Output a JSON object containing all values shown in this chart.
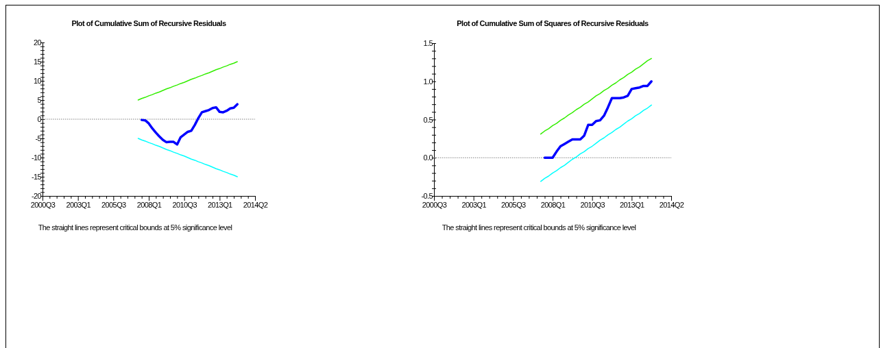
{
  "chart_data": [
    {
      "type": "line",
      "title": "Plot of Cumulative Sum of Recursive Residuals",
      "annotations": [
        "The straight lines represent critical bounds at 5% significance level"
      ],
      "categories": [
        "2000Q3",
        null,
        null,
        null,
        null,
        null,
        null,
        null,
        null,
        null,
        "2003Q1",
        null,
        null,
        null,
        null,
        null,
        null,
        null,
        null,
        null,
        "2005Q3",
        null,
        null,
        null,
        null,
        null,
        null,
        null,
        null,
        null,
        "2008Q1",
        null,
        null,
        null,
        null,
        null,
        null,
        null,
        null,
        null,
        "2010Q3",
        null,
        null,
        null,
        null,
        null,
        null,
        null,
        null,
        null,
        "2013Q1",
        null,
        null,
        null,
        null,
        null,
        null,
        null,
        null,
        null,
        "2014Q2"
      ],
      "ylim": [
        -20,
        20
      ],
      "yticks": [
        -20,
        {
          "value": -19,
          "label": null
        },
        {
          "value": -18,
          "label": null
        },
        {
          "value": -17,
          "label": null
        },
        {
          "value": -16,
          "label": null
        },
        -15,
        {
          "value": -14,
          "label": null
        },
        {
          "value": -13,
          "label": null
        },
        {
          "value": -12,
          "label": null
        },
        {
          "value": -11,
          "label": null
        },
        -10,
        {
          "value": -9,
          "label": null
        },
        {
          "value": -8,
          "label": null
        },
        {
          "value": -7,
          "label": null
        },
        {
          "value": -6,
          "label": null
        },
        -5,
        {
          "value": -4,
          "label": null
        },
        {
          "value": -3,
          "label": null
        },
        {
          "value": -2,
          "label": null
        },
        {
          "value": -1,
          "label": null
        },
        0,
        {
          "value": 1,
          "label": null
        },
        {
          "value": 2,
          "label": null
        },
        {
          "value": 3,
          "label": null
        },
        {
          "value": 4,
          "label": null
        },
        5,
        {
          "value": 6,
          "label": null
        },
        {
          "value": 7,
          "label": null
        },
        {
          "value": 8,
          "label": null
        },
        {
          "value": 9,
          "label": null
        },
        10,
        {
          "value": 11,
          "label": null
        },
        {
          "value": 12,
          "label": null
        },
        {
          "value": 13,
          "label": null
        },
        {
          "value": 14,
          "label": null
        },
        15,
        {
          "value": 16,
          "label": null
        },
        {
          "value": 17,
          "label": null
        },
        {
          "value": 18,
          "label": null
        },
        {
          "value": 19,
          "label": null
        },
        20
      ],
      "ref_lines": [
        {
          "axis": "y",
          "value": 0,
          "color": "#808080",
          "line_style": "dotted"
        }
      ],
      "series": [
        {
          "color": "#0000ff",
          "values": [
            null,
            null,
            null,
            null,
            null,
            null,
            null,
            null,
            null,
            null,
            null,
            null,
            null,
            null,
            null,
            null,
            null,
            null,
            null,
            null,
            null,
            null,
            null,
            null,
            null,
            null,
            null,
            null,
            -0.2,
            -0.3,
            -1.1,
            -2.4,
            -3.5,
            -4.5,
            -5.4,
            -6.0,
            -5.9,
            -5.9,
            -6.6,
            -4.7,
            -4.0,
            -3.3,
            -3.0,
            -1.5,
            0.3,
            1.8,
            2.1,
            2.4,
            2.9,
            3.1,
            1.9,
            1.8,
            2.2,
            2.8,
            3.0,
            3.9,
            null,
            null,
            null,
            null,
            null
          ]
        },
        {
          "color": "#33ee00",
          "values": [
            null,
            null,
            null,
            null,
            null,
            null,
            null,
            null,
            null,
            null,
            null,
            null,
            null,
            null,
            null,
            null,
            null,
            null,
            null,
            null,
            null,
            null,
            null,
            null,
            null,
            null,
            null,
            5,
            5.4,
            5.7,
            6.1,
            6.4,
            6.8,
            7.1,
            7.5,
            7.9,
            8.2,
            8.6,
            8.9,
            9.3,
            9.6,
            10,
            10.4,
            10.7,
            11.1,
            11.4,
            11.8,
            12.1,
            12.5,
            12.9,
            13.2,
            13.6,
            13.9,
            14.3,
            14.6,
            15,
            null,
            null,
            null,
            null,
            null
          ]
        },
        {
          "color": "#00ffff",
          "values": [
            null,
            null,
            null,
            null,
            null,
            null,
            null,
            null,
            null,
            null,
            null,
            null,
            null,
            null,
            null,
            null,
            null,
            null,
            null,
            null,
            null,
            null,
            null,
            null,
            null,
            null,
            null,
            -5,
            -5.4,
            -5.7,
            -6.1,
            -6.4,
            -6.8,
            -7.1,
            -7.5,
            -7.9,
            -8.2,
            -8.6,
            -8.9,
            -9.3,
            -9.6,
            -10,
            -10.4,
            -10.7,
            -11.1,
            -11.4,
            -11.8,
            -12.1,
            -12.5,
            -12.9,
            -13.2,
            -13.6,
            -13.9,
            -14.3,
            -14.6,
            -15,
            null,
            null,
            null,
            null,
            null
          ]
        }
      ]
    },
    {
      "type": "line",
      "title": "Plot of Cumulative Sum of Squares of Recursive Residuals",
      "annotations": [
        "The straight lines represent critical bounds at 5% significance level"
      ],
      "categories": [
        "2000Q3",
        null,
        null,
        null,
        null,
        null,
        null,
        null,
        null,
        null,
        "2003Q1",
        null,
        null,
        null,
        null,
        null,
        null,
        null,
        null,
        null,
        "2005Q3",
        null,
        null,
        null,
        null,
        null,
        null,
        null,
        null,
        null,
        "2008Q1",
        null,
        null,
        null,
        null,
        null,
        null,
        null,
        null,
        null,
        "2010Q3",
        null,
        null,
        null,
        null,
        null,
        null,
        null,
        null,
        null,
        "2013Q1",
        null,
        null,
        null,
        null,
        null,
        null,
        null,
        null,
        null,
        "2014Q2"
      ],
      "ylim": [
        -0.5,
        1.5
      ],
      "yticks": [
        {
          "value": -0.5,
          "label": "-0.5"
        },
        {
          "value": -0.4,
          "label": null
        },
        {
          "value": -0.3,
          "label": null
        },
        {
          "value": -0.2,
          "label": null
        },
        {
          "value": -0.1,
          "label": null
        },
        {
          "value": 0,
          "label": "0.0"
        },
        {
          "value": 0.1,
          "label": null
        },
        {
          "value": 0.2,
          "label": null
        },
        {
          "value": 0.3,
          "label": null
        },
        {
          "value": 0.4,
          "label": null
        },
        {
          "value": 0.5,
          "label": "0.5"
        },
        {
          "value": 0.6,
          "label": null
        },
        {
          "value": 0.7,
          "label": null
        },
        {
          "value": 0.8,
          "label": null
        },
        {
          "value": 0.9,
          "label": null
        },
        {
          "value": 1,
          "label": "1.0"
        },
        {
          "value": 1.1,
          "label": null
        },
        {
          "value": 1.2,
          "label": null
        },
        {
          "value": 1.3,
          "label": null
        },
        {
          "value": 1.4,
          "label": null
        },
        {
          "value": 1.5,
          "label": "1.5"
        }
      ],
      "ref_lines": [
        {
          "axis": "y",
          "value": 0,
          "color": "#808080",
          "line_style": "dotted"
        }
      ],
      "series": [
        {
          "color": "#0000ff",
          "values": [
            null,
            null,
            null,
            null,
            null,
            null,
            null,
            null,
            null,
            null,
            null,
            null,
            null,
            null,
            null,
            null,
            null,
            null,
            null,
            null,
            null,
            null,
            null,
            null,
            null,
            null,
            null,
            null,
            0,
            0,
            0,
            0.08,
            0.15,
            0.18,
            0.21,
            0.24,
            0.24,
            0.24,
            0.29,
            0.43,
            0.43,
            0.48,
            0.49,
            0.55,
            0.66,
            0.78,
            0.78,
            0.78,
            0.79,
            0.81,
            0.9,
            0.91,
            0.92,
            0.94,
            0.94,
            1.0,
            null,
            null,
            null,
            null,
            null
          ]
        },
        {
          "color": "#33ee00",
          "values": [
            null,
            null,
            null,
            null,
            null,
            null,
            null,
            null,
            null,
            null,
            null,
            null,
            null,
            null,
            null,
            null,
            null,
            null,
            null,
            null,
            null,
            null,
            null,
            null,
            null,
            null,
            null,
            0.31,
            0.35,
            0.38,
            0.42,
            0.45,
            0.49,
            0.52,
            0.56,
            0.59,
            0.63,
            0.66,
            0.7,
            0.73,
            0.77,
            0.81,
            0.84,
            0.88,
            0.91,
            0.95,
            0.98,
            1.02,
            1.05,
            1.09,
            1.12,
            1.16,
            1.19,
            1.23,
            1.27,
            1.3,
            null,
            null,
            null,
            null,
            null
          ]
        },
        {
          "color": "#00ffff",
          "values": [
            null,
            null,
            null,
            null,
            null,
            null,
            null,
            null,
            null,
            null,
            null,
            null,
            null,
            null,
            null,
            null,
            null,
            null,
            null,
            null,
            null,
            null,
            null,
            null,
            null,
            null,
            null,
            -0.31,
            -0.27,
            -0.24,
            -0.2,
            -0.17,
            -0.13,
            -0.1,
            -0.06,
            -0.02,
            0.01,
            0.05,
            0.08,
            0.12,
            0.15,
            0.19,
            0.23,
            0.26,
            0.3,
            0.33,
            0.37,
            0.4,
            0.44,
            0.48,
            0.51,
            0.55,
            0.58,
            0.62,
            0.65,
            0.69,
            null,
            null,
            null,
            null,
            null
          ]
        }
      ]
    }
  ]
}
